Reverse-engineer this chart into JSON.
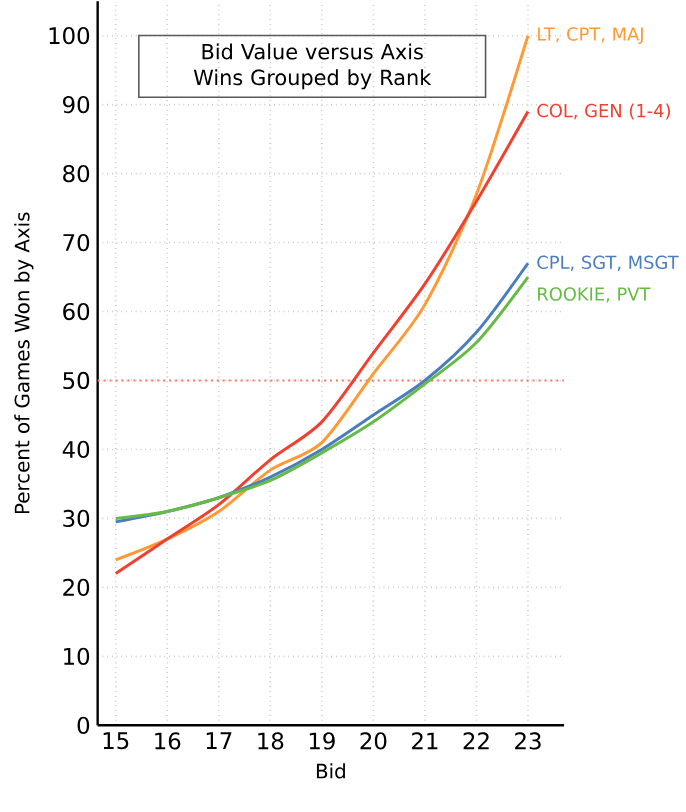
{
  "chart_data": {
    "type": "line",
    "title": "Bid Value versus Axis Wins Grouped by Rank",
    "xlabel": "Bid",
    "ylabel": "Percent of Games Won by Axis",
    "x": [
      15,
      16,
      17,
      18,
      19,
      20,
      21,
      22,
      23
    ],
    "series": [
      {
        "name": "LT, CPT, MAJ",
        "color": "#ff9933",
        "values": [
          24,
          27,
          31,
          37,
          41,
          51,
          61,
          77,
          100
        ]
      },
      {
        "name": "COL, GEN (1-4)",
        "color": "#f04030",
        "values": [
          22,
          27,
          32,
          38.5,
          44,
          54,
          64,
          76,
          89
        ]
      },
      {
        "name": "CPL, SGT, MSGT",
        "color": "#4a7cc0",
        "values": [
          29.5,
          31,
          33,
          36,
          40,
          45,
          50,
          57,
          67
        ]
      },
      {
        "name": "ROOKIE, PVT",
        "color": "#66bb44",
        "values": [
          30,
          31,
          33,
          35.5,
          39.5,
          44,
          49.5,
          55.5,
          65
        ]
      }
    ],
    "xlim": [
      14.65,
      23.7
    ],
    "ylim": [
      0,
      105
    ],
    "xticks": [
      15,
      16,
      17,
      18,
      19,
      20,
      21,
      22,
      23
    ],
    "yticks": [
      0,
      10,
      20,
      30,
      40,
      50,
      60,
      70,
      80,
      90,
      100
    ],
    "grid": true,
    "marker": "none",
    "line_style": "solid",
    "ref_lines": [
      {
        "axis": "y",
        "value": 50,
        "color": "#ff7766",
        "line_style": "dotted"
      }
    ]
  }
}
